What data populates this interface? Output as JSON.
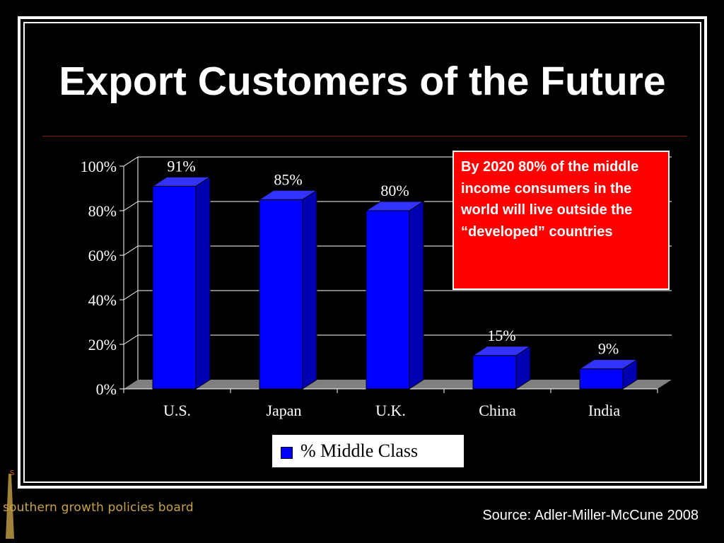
{
  "slide": {
    "title": "Export Customers of the Future",
    "callout": "By 2020 80% of the middle income consumers in the world will live outside the “developed” countries",
    "source": "Source: Adler-Miller-McCune 2008",
    "logo_text": "southern growth policies board",
    "logo_letter": "S"
  },
  "colors": {
    "background": "#000000",
    "bar_front": "#0000ff",
    "bar_side": "#0000b3",
    "bar_top": "#3333ff",
    "callout_bg": "#ff0000",
    "floor": "#808080",
    "logo": "#c8a24a"
  },
  "chart_data": {
    "type": "bar",
    "categories": [
      "U.S.",
      "Japan",
      "U.K.",
      "China",
      "India"
    ],
    "series": [
      {
        "name": "% Middle Class",
        "values": [
          91,
          85,
          80,
          15,
          9
        ]
      }
    ],
    "data_labels": [
      "91%",
      "85%",
      "80%",
      "15%",
      "9%"
    ],
    "y_ticks": [
      0,
      20,
      40,
      60,
      80,
      100
    ],
    "y_tick_labels": [
      "0%",
      "20%",
      "40%",
      "60%",
      "80%",
      "100%"
    ],
    "ylim": [
      0,
      100
    ],
    "grid": true,
    "legend_position": "bottom",
    "style": "3d-column",
    "title": "",
    "xlabel": "",
    "ylabel": ""
  }
}
